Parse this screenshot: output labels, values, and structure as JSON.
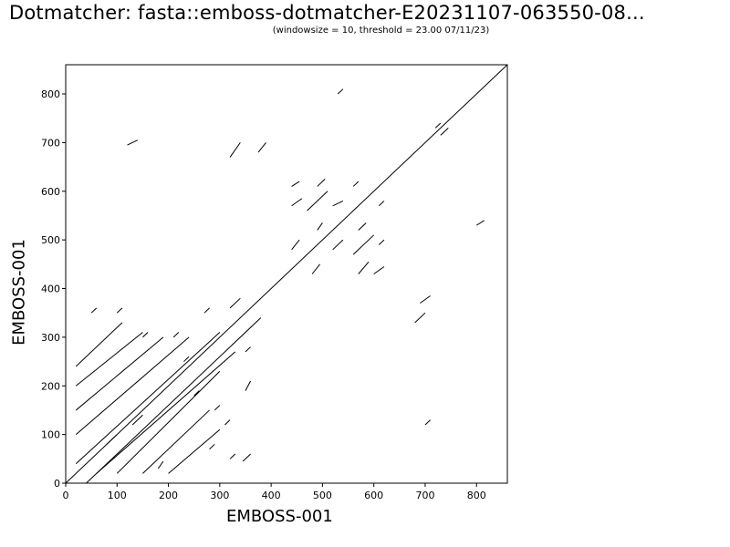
{
  "chart_data": {
    "type": "scatter",
    "title": "Dotmatcher: fasta::emboss-dotmatcher-E20231107-063550-08...",
    "subtitle": "(windowsize = 10, threshold = 23.00  07/11/23)",
    "xlabel": "EMBOSS-001",
    "ylabel": "EMBOSS-001",
    "xlim": [
      0,
      860
    ],
    "ylim": [
      0,
      860
    ],
    "xticks": [
      "0",
      "100",
      "200",
      "300",
      "400",
      "500",
      "600",
      "700",
      "800"
    ],
    "yticks": [
      "0",
      "100",
      "200",
      "300",
      "400",
      "500",
      "600",
      "700",
      "800"
    ],
    "grid": false,
    "diagonal": [
      [
        0,
        0
      ],
      [
        860,
        860
      ]
    ],
    "segments": [
      [
        40,
        0,
        380,
        340
      ],
      [
        20,
        40,
        300,
        310
      ],
      [
        20,
        100,
        240,
        300
      ],
      [
        20,
        150,
        190,
        300
      ],
      [
        20,
        200,
        150,
        310
      ],
      [
        20,
        240,
        110,
        330
      ],
      [
        60,
        20,
        330,
        270
      ],
      [
        100,
        20,
        300,
        230
      ],
      [
        150,
        20,
        280,
        150
      ],
      [
        200,
        20,
        300,
        110
      ],
      [
        50,
        350,
        60,
        360
      ],
      [
        100,
        350,
        110,
        360
      ],
      [
        120,
        695,
        140,
        705
      ],
      [
        530,
        800,
        540,
        810
      ],
      [
        320,
        360,
        340,
        380
      ],
      [
        320,
        670,
        340,
        700
      ],
      [
        375,
        680,
        390,
        700
      ],
      [
        440,
        610,
        455,
        620
      ],
      [
        440,
        570,
        460,
        585
      ],
      [
        490,
        610,
        505,
        625
      ],
      [
        470,
        560,
        510,
        600
      ],
      [
        490,
        520,
        500,
        535
      ],
      [
        520,
        570,
        540,
        580
      ],
      [
        520,
        480,
        540,
        500
      ],
      [
        560,
        470,
        600,
        510
      ],
      [
        570,
        430,
        590,
        455
      ],
      [
        570,
        520,
        585,
        535
      ],
      [
        600,
        430,
        620,
        445
      ],
      [
        610,
        490,
        620,
        500
      ],
      [
        440,
        480,
        455,
        500
      ],
      [
        480,
        430,
        495,
        450
      ],
      [
        720,
        730,
        730,
        740
      ],
      [
        730,
        715,
        745,
        730
      ],
      [
        800,
        530,
        815,
        540
      ],
      [
        680,
        330,
        700,
        350
      ],
      [
        690,
        370,
        710,
        385
      ],
      [
        700,
        120,
        710,
        130
      ],
      [
        345,
        45,
        360,
        60
      ],
      [
        350,
        190,
        360,
        210
      ],
      [
        350,
        270,
        360,
        280
      ],
      [
        270,
        350,
        280,
        360
      ],
      [
        210,
        300,
        220,
        310
      ],
      [
        150,
        300,
        160,
        310
      ],
      [
        180,
        30,
        190,
        45
      ],
      [
        320,
        50,
        330,
        60
      ],
      [
        250,
        180,
        260,
        190
      ],
      [
        230,
        250,
        240,
        260
      ],
      [
        290,
        150,
        300,
        160
      ],
      [
        310,
        120,
        320,
        130
      ],
      [
        280,
        70,
        290,
        80
      ],
      [
        130,
        120,
        150,
        140
      ],
      [
        80,
        80,
        100,
        100
      ],
      [
        560,
        610,
        570,
        620
      ],
      [
        610,
        570,
        620,
        580
      ]
    ]
  }
}
